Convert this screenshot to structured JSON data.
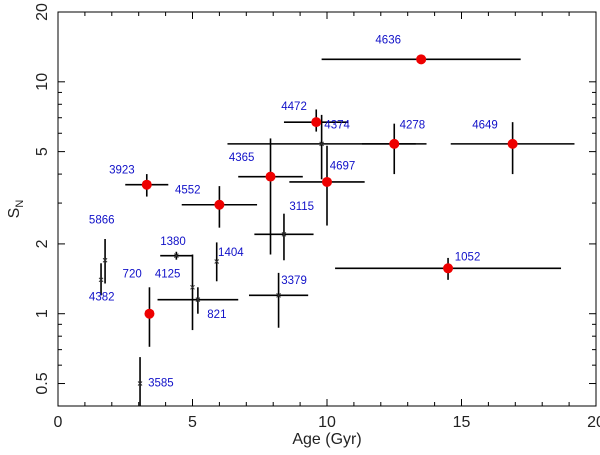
{
  "chart_data": {
    "type": "scatter",
    "xlabel": "Age (Gyr)",
    "ylabel": "S",
    "ylabel_subscript": "N",
    "xlim": [
      0,
      20
    ],
    "ylim": [
      0.4,
      20
    ],
    "yscale": "log",
    "xticks": [
      0,
      5,
      10,
      15,
      20
    ],
    "xtick_labels": [
      "0",
      "5",
      "10",
      "15",
      "20"
    ],
    "yticks": [
      0.5,
      1,
      2,
      5,
      10,
      20
    ],
    "ytick_labels": [
      "0.5",
      "1",
      "2",
      "5",
      "10",
      "20"
    ],
    "colors": {
      "red_marker": "#ee0000",
      "label": "#1010c8",
      "axis": "#000000"
    },
    "series": [
      {
        "name": "red",
        "marker": "circle",
        "points": [
          {
            "label": "4636",
            "x": 13.5,
            "y": 12.5,
            "xerr": [
              3.7,
              3.7
            ],
            "yerr": [
              0,
              0
            ]
          },
          {
            "label": "4472",
            "x": 9.6,
            "y": 6.7,
            "xerr": [
              1.2,
              1.2
            ],
            "yerr": [
              0.6,
              0.9
            ]
          },
          {
            "label": "4278",
            "x": 12.5,
            "y": 5.4,
            "xerr": [
              1.2,
              1.2
            ],
            "yerr": [
              1.4,
              1.2
            ]
          },
          {
            "label": "4649",
            "x": 16.9,
            "y": 5.4,
            "xerr": [
              2.3,
              2.3
            ],
            "yerr": [
              1.4,
              1.3
            ]
          },
          {
            "label": "3923",
            "x": 3.3,
            "y": 3.6,
            "xerr": [
              0.8,
              0.8
            ],
            "yerr": [
              0.4,
              0.4
            ]
          },
          {
            "label": "4365",
            "x": 7.9,
            "y": 3.9,
            "xerr": [
              1.2,
              1.2
            ],
            "yerr": [
              2.1,
              1.8
            ]
          },
          {
            "label": "4697",
            "x": 10.0,
            "y": 3.7,
            "xerr": [
              1.4,
              1.4
            ],
            "yerr": [
              1.3,
              1.6
            ]
          },
          {
            "label": "4552",
            "x": 6.0,
            "y": 2.95,
            "xerr": [
              1.4,
              1.4
            ],
            "yerr": [
              0.6,
              0.6
            ]
          },
          {
            "label": "1052",
            "x": 14.5,
            "y": 1.57,
            "xerr": [
              4.2,
              4.2
            ],
            "yerr": [
              0.17,
              0.17
            ]
          },
          {
            "label": "4125",
            "x": 3.4,
            "y": 1.0,
            "xerr": [
              0,
              0
            ],
            "yerr": [
              0.28,
              0.3
            ]
          }
        ]
      },
      {
        "name": "black",
        "marker": "cross",
        "points": [
          {
            "label": "4374",
            "x": 9.8,
            "y": 5.4,
            "xerr": [
              3.5,
              3.5
            ],
            "yerr": [
              1.6,
              1.8
            ]
          },
          {
            "label": "3115",
            "x": 8.4,
            "y": 2.2,
            "xerr": [
              1.1,
              1.1
            ],
            "yerr": [
              0.5,
              0.5
            ]
          },
          {
            "label": "3379",
            "x": 8.2,
            "y": 1.2,
            "xerr": [
              1.1,
              1.1
            ],
            "yerr": [
              0.33,
              0.3
            ]
          },
          {
            "label": "5866",
            "x": 1.75,
            "y": 1.7,
            "xerr": [
              0,
              0
            ],
            "yerr": [
              0.35,
              0.4
            ]
          },
          {
            "label": "4382",
            "x": 1.6,
            "y": 1.4,
            "xerr": [
              0,
              0
            ],
            "yerr": [
              0.2,
              0.25
            ]
          },
          {
            "label": "1380",
            "x": 4.4,
            "y": 1.78,
            "xerr": [
              0.6,
              0.6
            ],
            "yerr": [
              0.07,
              0.07
            ]
          },
          {
            "label": "720",
            "x": 5.0,
            "y": 1.3,
            "xerr": [
              0,
              0
            ],
            "yerr": [
              0.45,
              0.5
            ]
          },
          {
            "label": "821",
            "x": 5.2,
            "y": 1.15,
            "xerr": [
              1.5,
              1.5
            ],
            "yerr": [
              0.15,
              0.15
            ]
          },
          {
            "label": "1404",
            "x": 5.9,
            "y": 1.68,
            "xerr": [
              0,
              0
            ],
            "yerr": [
              0.3,
              0.35
            ]
          },
          {
            "label": "3585",
            "x": 3.05,
            "y": 0.5,
            "xerr": [
              0,
              0
            ],
            "yerr": [
              0.1,
              0.15
            ]
          }
        ]
      }
    ],
    "annotations": [
      {
        "text": "4636",
        "x": 11.8,
        "y": 14.6
      },
      {
        "text": "4472",
        "x": 8.3,
        "y": 7.55
      },
      {
        "text": "4374",
        "x": 9.9,
        "y": 6.3
      },
      {
        "text": "4278",
        "x": 12.7,
        "y": 6.3
      },
      {
        "text": "4649",
        "x": 15.4,
        "y": 6.3
      },
      {
        "text": "3923",
        "x": 1.9,
        "y": 4.03
      },
      {
        "text": "4365",
        "x": 6.35,
        "y": 4.55
      },
      {
        "text": "4697",
        "x": 10.1,
        "y": 4.18
      },
      {
        "text": "4552",
        "x": 4.35,
        "y": 3.3
      },
      {
        "text": "3115",
        "x": 8.6,
        "y": 2.8
      },
      {
        "text": "5866",
        "x": 1.15,
        "y": 2.45
      },
      {
        "text": "1380",
        "x": 3.8,
        "y": 1.98
      },
      {
        "text": "1404",
        "x": 5.95,
        "y": 1.77
      },
      {
        "text": "720",
        "x": 2.4,
        "y": 1.43
      },
      {
        "text": "4125",
        "x": 3.6,
        "y": 1.43
      },
      {
        "text": "3379",
        "x": 8.3,
        "y": 1.34
      },
      {
        "text": "4382",
        "x": 1.15,
        "y": 1.14
      },
      {
        "text": "821",
        "x": 5.55,
        "y": 0.96
      },
      {
        "text": "1052",
        "x": 14.75,
        "y": 1.7
      },
      {
        "text": "3585",
        "x": 3.35,
        "y": 0.485
      }
    ]
  }
}
